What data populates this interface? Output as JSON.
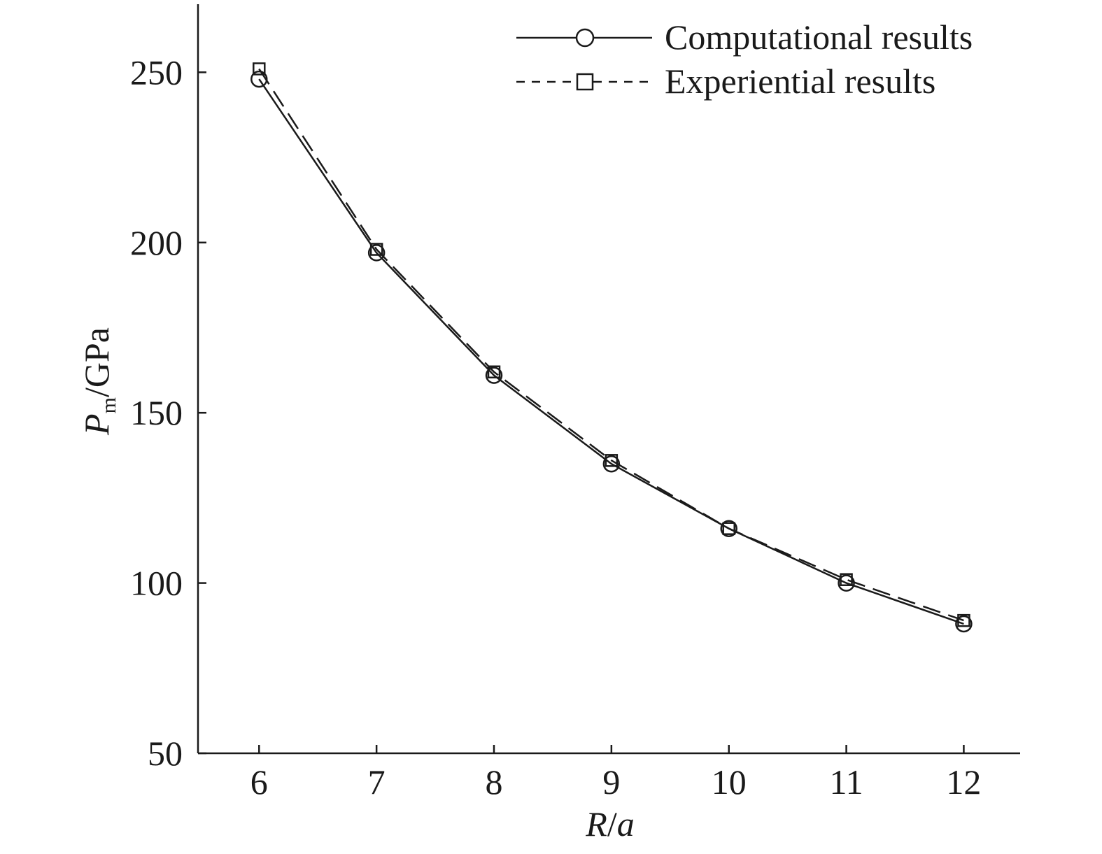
{
  "chart_data": {
    "type": "line",
    "xlabel": {
      "main": "R",
      "sep": "/",
      "denom": "a"
    },
    "ylabel": {
      "main": "P",
      "sub": "m",
      "unit": "/GPa"
    },
    "xlim": [
      5.48,
      12.48
    ],
    "ylim": [
      50,
      270
    ],
    "x": [
      6,
      7,
      8,
      9,
      10,
      11,
      12
    ],
    "xticks": [
      "6",
      "7",
      "8",
      "9",
      "10",
      "11",
      "12"
    ],
    "yticks": [
      "50",
      "100",
      "150",
      "200",
      "250"
    ],
    "legend_position": "top-right",
    "grid": false,
    "series": [
      {
        "name": "Computational results",
        "marker": "circle",
        "dash": "solid",
        "color": "#1a1a1a",
        "values": [
          248,
          197,
          161,
          135,
          116,
          100,
          88
        ]
      },
      {
        "name": "Experiential results",
        "marker": "square",
        "dash": "dashed",
        "color": "#1a1a1a",
        "values": [
          251,
          198,
          162,
          136,
          116,
          101,
          89
        ]
      }
    ]
  }
}
